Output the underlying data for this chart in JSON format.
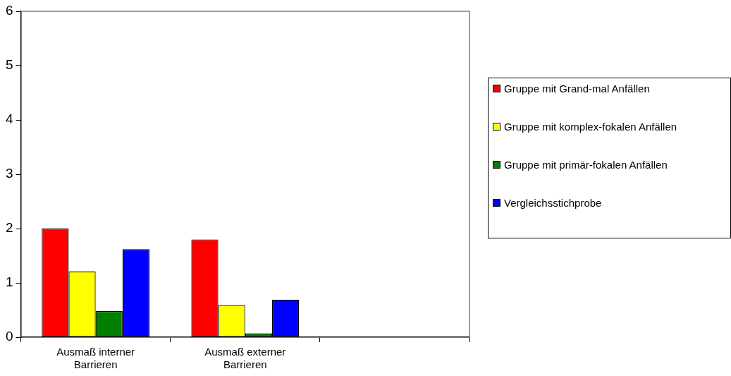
{
  "chart_data": {
    "type": "bar",
    "categories": [
      "Ausmaß interner Barrieren",
      "Ausmaß externer Barrieren",
      null
    ],
    "series": [
      {
        "name": "Gruppe mit Grand-mal Anfällen",
        "color": "#ff0000",
        "values": [
          2.0,
          1.8,
          null
        ]
      },
      {
        "name": "Gruppe mit komplex-fokalen Anfällen",
        "color": "#ffff00",
        "values": [
          1.21,
          0.59,
          null
        ]
      },
      {
        "name": "Gruppe mit primär-fokalen Anfällen",
        "color": "#008000",
        "values": [
          0.48,
          0.07,
          null
        ]
      },
      {
        "name": "Vergleichsstichprobe",
        "color": "#0000ff",
        "values": [
          1.62,
          0.69,
          null
        ]
      }
    ],
    "ylim": [
      0,
      6
    ],
    "yticks": [
      0,
      1,
      2,
      3,
      4,
      5,
      6
    ],
    "grid": false,
    "legend": "right"
  }
}
